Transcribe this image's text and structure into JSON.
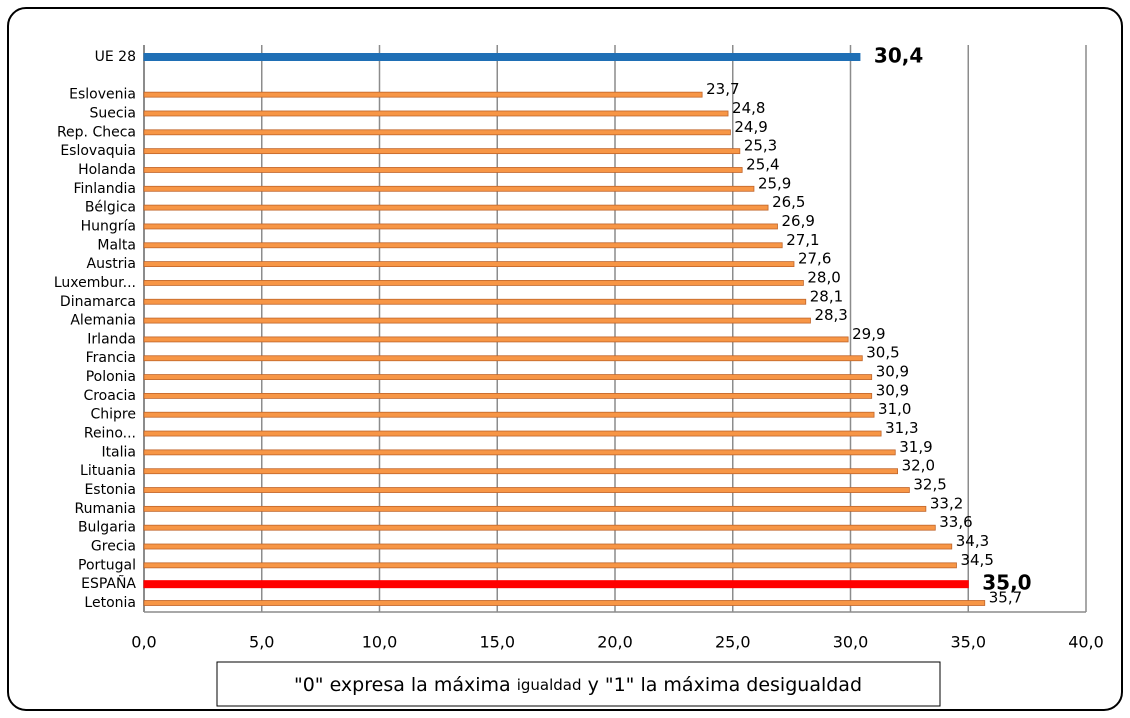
{
  "chart_data": {
    "type": "bar",
    "orientation": "horizontal",
    "categories": [
      "UE 28",
      null,
      "Eslovenia",
      "Suecia",
      "Rep. Checa",
      "Eslovaquia",
      "Holanda",
      "Finlandia",
      "Bélgica",
      "Hungría",
      "Malta",
      "Austria",
      "Luxembur...",
      "Dinamarca",
      "Alemania",
      "Irlanda",
      "Francia",
      "Polonia",
      "Croacia",
      "Chipre",
      "Reino...",
      "Italia",
      "Lituania",
      "Estonia",
      "Rumania",
      "Bulgaria",
      "Grecia",
      "Portugal",
      "ESPAÑA",
      "Letonia"
    ],
    "values": [
      30.4,
      null,
      23.7,
      24.8,
      24.9,
      25.3,
      25.4,
      25.9,
      26.5,
      26.9,
      27.1,
      27.6,
      28.0,
      28.1,
      28.3,
      29.9,
      30.5,
      30.9,
      30.9,
      31.0,
      31.3,
      31.9,
      32.0,
      32.5,
      33.2,
      33.6,
      34.3,
      34.5,
      35.0,
      35.7
    ],
    "value_labels": [
      "30,4",
      null,
      "23,7",
      "24,8",
      "24,9",
      "25,3",
      "25,4",
      "25,9",
      "26,5",
      "26,9",
      "27,1",
      "27,6",
      "28,0",
      "28,1",
      "28,3",
      "29,9",
      "30,5",
      "30,9",
      "30,9",
      "31,0",
      "31,3",
      "31,9",
      "32,0",
      "32,5",
      "33,2",
      "33,6",
      "34,3",
      "34,5",
      "35,0",
      "35,7"
    ],
    "color": "#f79646",
    "highlights": [
      {
        "index": 0,
        "color": "#1f6fb5"
      },
      {
        "index": 28,
        "color": "#ff0000"
      }
    ],
    "xlim": [
      0,
      40
    ],
    "xticks": [
      {
        "value": 0,
        "label": "0,0"
      },
      {
        "value": 5,
        "label": "5,0"
      },
      {
        "value": 10,
        "label": "10,0"
      },
      {
        "value": 15,
        "label": "15,0"
      },
      {
        "value": 20,
        "label": "20,0"
      },
      {
        "value": 25,
        "label": "25,0"
      },
      {
        "value": 30,
        "label": "30,0"
      },
      {
        "value": 35,
        "label": "35,0"
      },
      {
        "value": 40,
        "label": "40,0"
      }
    ],
    "grid": true,
    "annotation": [
      "\"0\" expresa la máxima ",
      "igualdad",
      " y \"1\" la máxima desigualdad"
    ]
  }
}
